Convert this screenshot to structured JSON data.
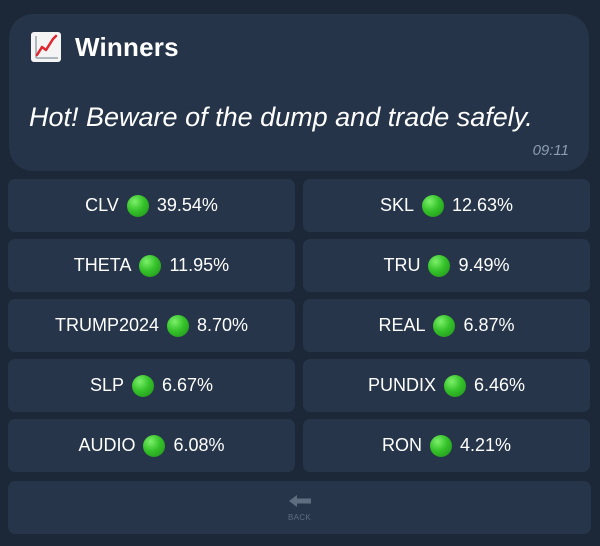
{
  "message": {
    "icon": "chart-increasing-icon",
    "title": "Winners",
    "text": "Hot! Beware of the dump and trade safely.",
    "time": "09:11"
  },
  "buttons": [
    {
      "symbol": "CLV",
      "change": "39.54%"
    },
    {
      "symbol": "SKL",
      "change": "12.63%"
    },
    {
      "symbol": "THETA",
      "change": "11.95%"
    },
    {
      "symbol": "TRU",
      "change": "9.49%"
    },
    {
      "symbol": "TRUMP2024",
      "change": "8.70%"
    },
    {
      "symbol": "REAL",
      "change": "6.87%"
    },
    {
      "symbol": "SLP",
      "change": "6.67%"
    },
    {
      "symbol": "PUNDIX",
      "change": "6.46%"
    },
    {
      "symbol": "AUDIO",
      "change": "6.08%"
    },
    {
      "symbol": "RON",
      "change": "4.21%"
    }
  ],
  "back_button": {
    "label": "BACK",
    "icon": "back-arrow-icon"
  },
  "colors": {
    "background": "#1c2738",
    "bubble": "#253448",
    "button": "#263549",
    "status_dot": "#35c22a",
    "time": "#8b9bb0"
  }
}
